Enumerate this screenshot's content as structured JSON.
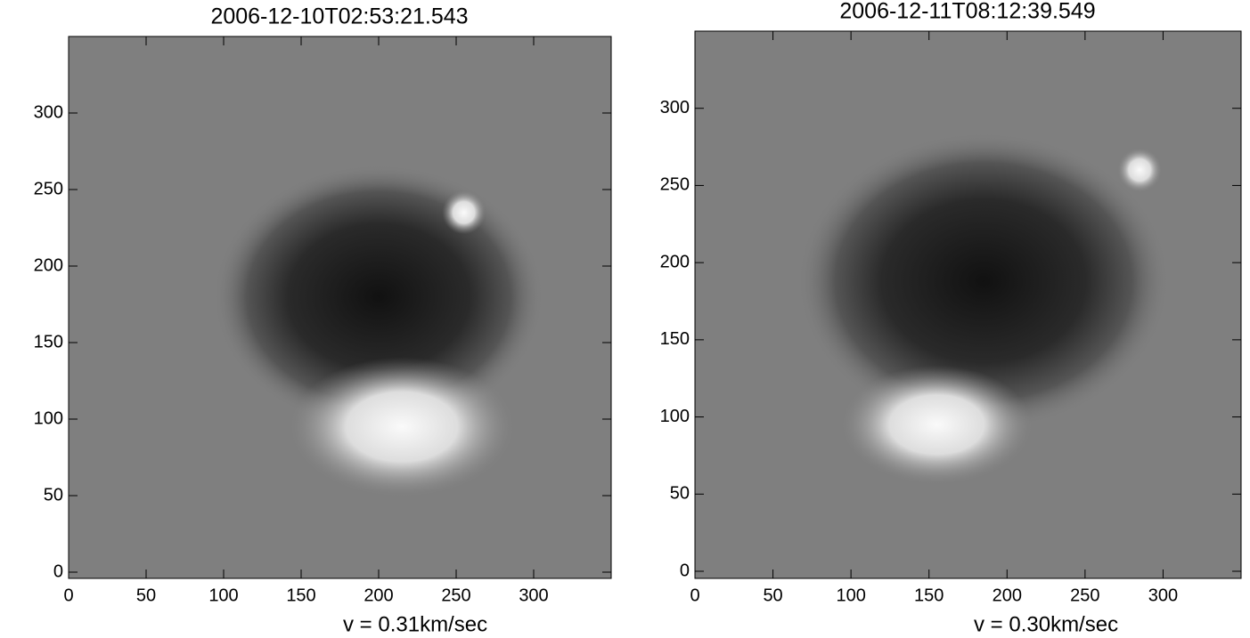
{
  "chart_data": [
    {
      "type": "image",
      "title": "2006-12-10T02:53:21.543",
      "xlim": [
        0,
        350
      ],
      "ylim": [
        0,
        350
      ],
      "xticks": [
        0,
        50,
        100,
        150,
        200,
        250,
        300
      ],
      "yticks": [
        0,
        50,
        100,
        150,
        200,
        250,
        300
      ],
      "annotation": "v =    0.31km/sec"
    },
    {
      "type": "image",
      "title": "2006-12-11T08:12:39.549",
      "xlim": [
        0,
        350
      ],
      "ylim": [
        0,
        350
      ],
      "xticks": [
        0,
        50,
        100,
        150,
        200,
        250,
        300
      ],
      "yticks": [
        0,
        50,
        100,
        150,
        200,
        250,
        300
      ],
      "annotation": "v =    0.30km/sec"
    }
  ]
}
